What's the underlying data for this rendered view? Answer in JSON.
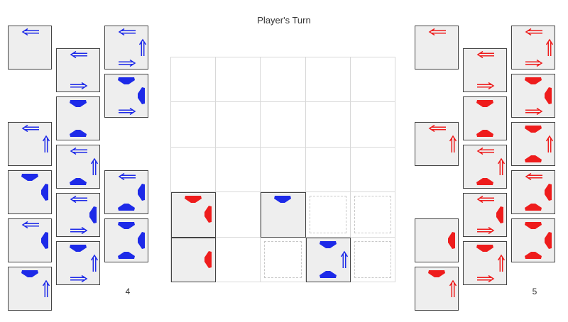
{
  "title": "Player's Turn",
  "colors": {
    "blue": "#1d2ae8",
    "red": "#ee1c1c",
    "card": "#eeeeee",
    "border": "#444444",
    "grid": "#d8d8d8"
  },
  "blue_side": {
    "count": "4",
    "columns": [
      [
        [
          "arrow-left"
        ],
        [],
        [
          "arrow-left",
          "arrow-up"
        ],
        [
          "head-down",
          "head-left"
        ],
        [
          "arrow-left",
          "head-left"
        ],
        [
          "head-down",
          "arrow-up"
        ]
      ],
      [
        [
          "arrow-left",
          "arrow-right"
        ],
        [
          "head-down",
          "head-up"
        ],
        [
          "arrow-left",
          "arrow-up",
          "head-up"
        ],
        [
          "arrow-left",
          "head-left",
          "arrow-right"
        ],
        [
          "head-down",
          "arrow-up",
          "arrow-right"
        ]
      ],
      [
        [
          "arrow-left",
          "arrow-up",
          "arrow-right"
        ],
        [
          "head-down",
          "head-left",
          "arrow-right"
        ],
        [],
        [
          "arrow-left",
          "head-left",
          "head-up"
        ],
        [
          "head-down",
          "head-left",
          "head-up"
        ]
      ]
    ]
  },
  "red_side": {
    "count": "5",
    "columns": [
      [
        [
          "arrow-left"
        ],
        [],
        [
          "arrow-left",
          "arrow-up"
        ],
        [],
        [
          "head-left"
        ],
        [
          "head-down",
          "arrow-up"
        ]
      ],
      [
        [
          "arrow-left",
          "arrow-right"
        ],
        [
          "head-down",
          "head-up"
        ],
        [
          "arrow-left",
          "arrow-up",
          "head-up"
        ],
        [
          "arrow-left",
          "head-left",
          "arrow-right"
        ],
        [
          "head-down",
          "arrow-up",
          "arrow-right"
        ]
      ],
      [
        [
          "arrow-left",
          "arrow-up",
          "arrow-right"
        ],
        [
          "head-down",
          "head-left",
          "arrow-right"
        ],
        [
          "head-down",
          "arrow-up",
          "head-up"
        ],
        [
          "arrow-left",
          "head-left",
          "head-up"
        ],
        [
          "head-down",
          "head-left",
          "head-up"
        ]
      ]
    ]
  },
  "board": {
    "rows": 5,
    "cols": 5,
    "pieces": [
      {
        "row": 3,
        "col": 0,
        "color": "red",
        "marks": [
          "head-down",
          "head-left"
        ]
      },
      {
        "row": 4,
        "col": 0,
        "color": "red",
        "marks": [
          "head-left"
        ]
      },
      {
        "row": 3,
        "col": 2,
        "color": "blue",
        "marks": [
          "head-down"
        ]
      },
      {
        "row": 4,
        "col": 3,
        "color": "blue",
        "marks": [
          "head-down",
          "arrow-up",
          "head-up"
        ]
      }
    ],
    "targets": [
      {
        "row": 3,
        "col": 3
      },
      {
        "row": 3,
        "col": 4
      },
      {
        "row": 4,
        "col": 2
      },
      {
        "row": 4,
        "col": 4
      }
    ]
  }
}
